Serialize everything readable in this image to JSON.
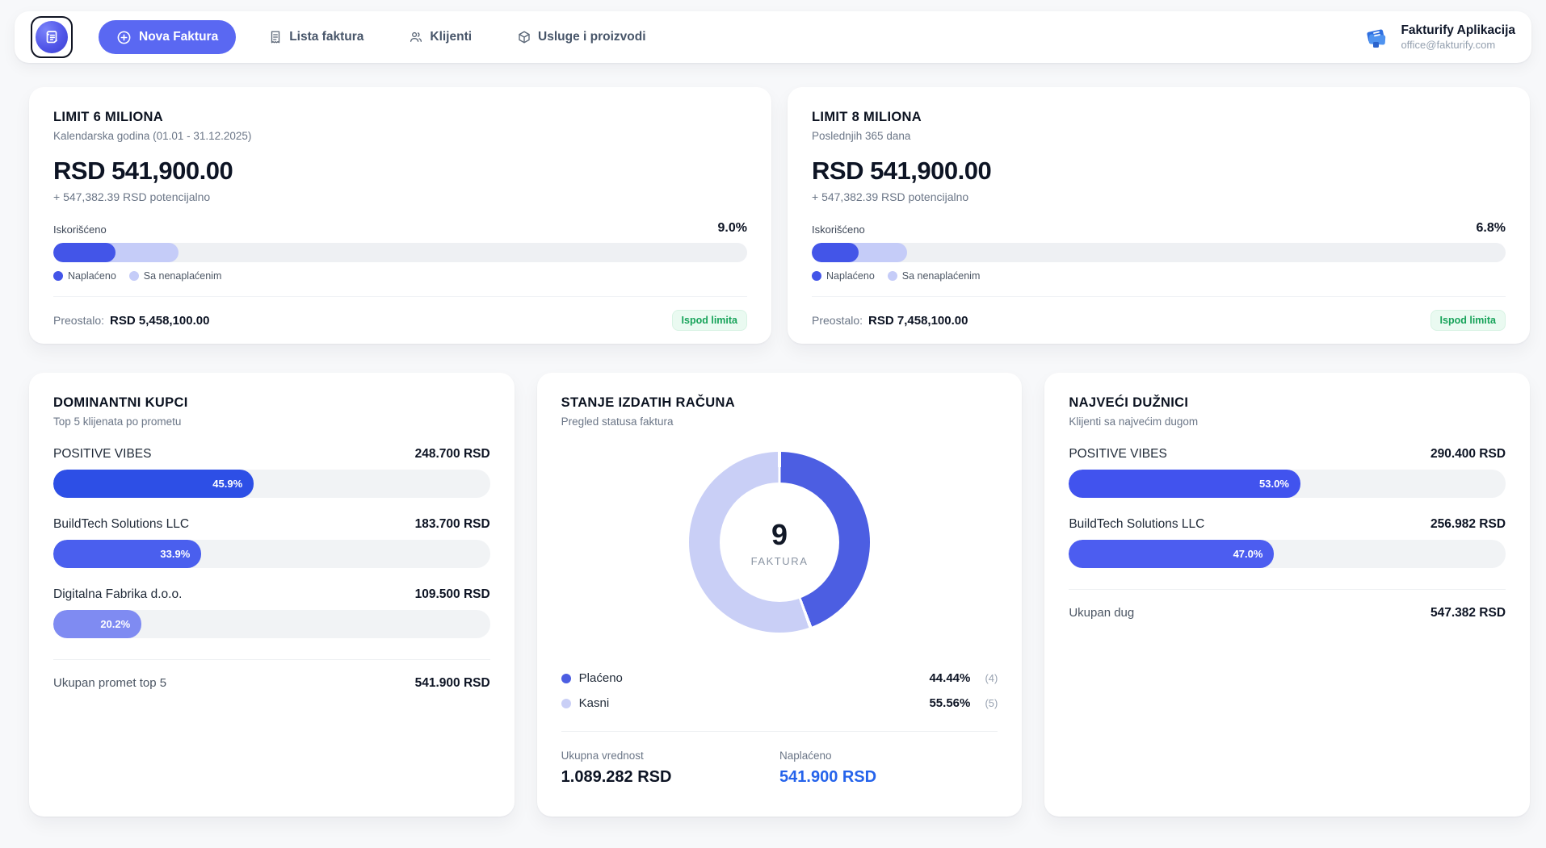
{
  "app": {
    "name": "Fakturify Aplikacija",
    "email": "office@fakturify.com",
    "accent": "#4355e8",
    "accent_light": "#c5ccf8",
    "button_color": "#5a68f2"
  },
  "nav": {
    "new_invoice_label": "Nova Faktura",
    "items": [
      {
        "label": "Lista faktura"
      },
      {
        "label": "Klijenti"
      },
      {
        "label": "Usluge i proizvodi"
      }
    ]
  },
  "limit_cards": [
    {
      "title": "LIMIT 6 MILIONA",
      "subtitle": "Kalendarska godina (01.01 - 31.12.2025)",
      "amount": "RSD 541,900.00",
      "potential": "+ 547,382.39 RSD potencijalno",
      "used_label": "Iskorišćeno",
      "used_pct_label": "9.0%",
      "paid_pct": 9.0,
      "total_pct": 18.1,
      "legend_paid": "Naplaćeno",
      "legend_pending": "Sa nenaplaćenim",
      "remaining_label": "Preostalo:",
      "remaining_value": "RSD 5,458,100.00",
      "badge": "Ispod limita"
    },
    {
      "title": "LIMIT 8 MILIONA",
      "subtitle": "Poslednjih 365 dana",
      "amount": "RSD 541,900.00",
      "potential": "+ 547,382.39 RSD potencijalno",
      "used_label": "Iskorišćeno",
      "used_pct_label": "6.8%",
      "paid_pct": 6.8,
      "total_pct": 13.7,
      "legend_paid": "Naplaćeno",
      "legend_pending": "Sa nenaplaćenim",
      "remaining_label": "Preostalo:",
      "remaining_value": "RSD 7,458,100.00",
      "badge": "Ispod limita"
    }
  ],
  "top_clients": {
    "title": "DOMINANTNI KUPCI",
    "subtitle": "Top 5 klijenata po prometu",
    "rows": [
      {
        "name": "POSITIVE VIBES",
        "value": "248.700 RSD",
        "pct": 45.9,
        "pct_label": "45.9%",
        "color": "#2d4fe6"
      },
      {
        "name": "BuildTech Solutions LLC",
        "value": "183.700 RSD",
        "pct": 33.9,
        "pct_label": "33.9%",
        "color": "#4a5fee"
      },
      {
        "name": "Digitalna Fabrika d.o.o.",
        "value": "109.500 RSD",
        "pct": 20.2,
        "pct_label": "20.2%",
        "color": "#7f8bf2"
      }
    ],
    "total_label": "Ukupan promet top 5",
    "total_value": "541.900 RSD"
  },
  "invoice_status": {
    "title": "STANJE IZDATIH RAČUNA",
    "subtitle": "Pregled statusa faktura",
    "center_value": "9",
    "center_label": "FAKTURA",
    "legend": [
      {
        "label": "Plaćeno",
        "pct_label": "44.44%",
        "count_label": "(4)",
        "color": "#4c5ee2"
      },
      {
        "label": "Kasni",
        "pct_label": "55.56%",
        "count_label": "(5)",
        "color": "#c9cff6"
      }
    ],
    "total_label": "Ukupna vrednost",
    "total_value": "1.089.282 RSD",
    "paid_label": "Naplaćeno",
    "paid_value": "541.900 RSD"
  },
  "debtors": {
    "title": "NAJVEĆI DUŽNICI",
    "subtitle": "Klijenti sa najvećim dugom",
    "rows": [
      {
        "name": "POSITIVE VIBES",
        "value": "290.400 RSD",
        "pct": 53.0,
        "pct_label": "53.0%",
        "color": "#4153ee"
      },
      {
        "name": "BuildTech Solutions LLC",
        "value": "256.982 RSD",
        "pct": 47.0,
        "pct_label": "47.0%",
        "color": "#4c5df0"
      }
    ],
    "total_label": "Ukupan dug",
    "total_value": "547.382 RSD"
  },
  "chart_data": [
    {
      "type": "pie",
      "title": "STANJE IZDATIH RAČUNA",
      "subtitle": "Pregled statusa faktura",
      "labels": [
        "Plaćeno",
        "Kasni"
      ],
      "values": [
        44.44,
        55.56
      ],
      "counts": [
        4,
        5
      ],
      "total_invoices": 9,
      "colors": [
        "#4c5ee2",
        "#c9cff6"
      ],
      "hole": 0.66,
      "start_angle_deg": 0,
      "legend_position": "bottom"
    },
    {
      "type": "bar",
      "title": "DOMINANTNI KUPCI",
      "categories": [
        "POSITIVE VIBES",
        "BuildTech Solutions LLC",
        "Digitalna Fabrika d.o.o."
      ],
      "values": [
        45.9,
        33.9,
        20.2
      ],
      "value_labels": [
        "248.700 RSD",
        "183.700 RSD",
        "109.500 RSD"
      ],
      "xlim": [
        0,
        100
      ],
      "ylabel": "",
      "xlabel": ""
    },
    {
      "type": "bar",
      "title": "NAJVEĆI DUŽNICI",
      "categories": [
        "POSITIVE VIBES",
        "BuildTech Solutions LLC"
      ],
      "values": [
        53.0,
        47.0
      ],
      "value_labels": [
        "290.400 RSD",
        "256.982 RSD"
      ],
      "xlim": [
        0,
        100
      ],
      "ylabel": "",
      "xlabel": ""
    }
  ]
}
